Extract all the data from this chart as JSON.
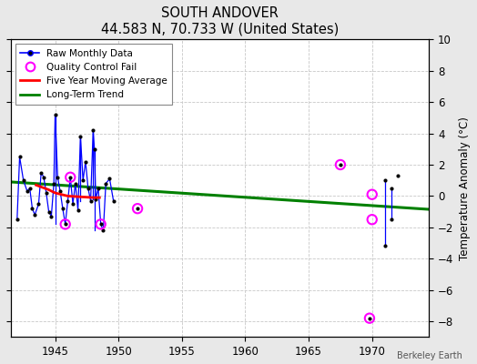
{
  "title": "SOUTH ANDOVER",
  "subtitle": "44.583 N, 70.733 W (United States)",
  "ylabel": "Temperature Anomaly (°C)",
  "credit": "Berkeley Earth",
  "xlim": [
    1941.5,
    1974.5
  ],
  "ylim": [
    -9,
    10
  ],
  "yticks": [
    -8,
    -6,
    -4,
    -2,
    0,
    2,
    4,
    6,
    8,
    10
  ],
  "xticks": [
    1945,
    1950,
    1955,
    1960,
    1965,
    1970
  ],
  "fig_bg": "#e8e8e8",
  "plot_bg": "#ffffff",
  "grid_color": "#c8c8c8",
  "raw_data": [
    [
      1942.0,
      -1.5
    ],
    [
      1942.2,
      2.5
    ],
    [
      1942.5,
      1.0
    ],
    [
      1942.8,
      0.3
    ],
    [
      1943.0,
      0.5
    ],
    [
      1943.2,
      -0.8
    ],
    [
      1943.4,
      -1.2
    ],
    [
      1943.7,
      -0.5
    ],
    [
      1943.9,
      1.5
    ],
    [
      1944.1,
      1.2
    ],
    [
      1944.3,
      0.2
    ],
    [
      1944.5,
      -1.0
    ],
    [
      1944.7,
      -1.3
    ],
    [
      1944.9,
      0.8
    ],
    [
      1945.0,
      5.2
    ],
    [
      1945.2,
      1.2
    ],
    [
      1945.4,
      0.3
    ],
    [
      1945.6,
      -0.8
    ],
    [
      1945.8,
      -1.8
    ],
    [
      1946.0,
      -0.3
    ],
    [
      1946.2,
      1.2
    ],
    [
      1946.4,
      -0.5
    ],
    [
      1946.6,
      0.8
    ],
    [
      1946.8,
      -0.9
    ],
    [
      1947.0,
      3.8
    ],
    [
      1947.2,
      1.0
    ],
    [
      1947.4,
      2.2
    ],
    [
      1947.6,
      0.5
    ],
    [
      1947.8,
      -0.3
    ],
    [
      1948.0,
      4.2
    ],
    [
      1948.1,
      3.0
    ],
    [
      1948.2,
      -0.2
    ],
    [
      1948.4,
      0.5
    ],
    [
      1948.6,
      -1.8
    ],
    [
      1948.8,
      -2.2
    ],
    [
      1949.0,
      0.8
    ],
    [
      1949.3,
      1.1
    ],
    [
      1949.6,
      -0.3
    ]
  ],
  "qc_fail_data": [
    [
      1945.8,
      -1.8
    ],
    [
      1946.2,
      1.2
    ],
    [
      1948.6,
      -1.8
    ],
    [
      1951.5,
      -0.8
    ],
    [
      1967.5,
      2.0
    ],
    [
      1970.0,
      0.1
    ],
    [
      1970.0,
      -1.5
    ],
    [
      1969.8,
      -7.8
    ]
  ],
  "raw_line_segments": [
    [
      [
        1945.0,
        1945.0
      ],
      [
        5.2,
        -1.8
      ]
    ],
    [
      [
        1947.0,
        1947.0
      ],
      [
        3.8,
        -0.3
      ]
    ],
    [
      [
        1948.0,
        1948.0
      ],
      [
        4.2,
        -0.2
      ]
    ],
    [
      [
        1948.1,
        1948.1
      ],
      [
        3.0,
        -2.2
      ]
    ],
    [
      [
        1971.0,
        1971.0
      ],
      [
        1.0,
        -3.2
      ]
    ],
    [
      [
        1971.5,
        1971.5
      ],
      [
        0.5,
        -1.5
      ]
    ]
  ],
  "isolated_points": [
    [
      1951.5,
      -0.8
    ],
    [
      1967.5,
      2.0
    ],
    [
      1971.0,
      1.0
    ],
    [
      1971.0,
      -3.2
    ],
    [
      1972.0,
      1.3
    ],
    [
      1971.5,
      0.5
    ],
    [
      1971.5,
      -1.5
    ],
    [
      1969.8,
      -7.8
    ]
  ],
  "moving_avg": [
    [
      1943.5,
      0.7
    ],
    [
      1944.5,
      0.4
    ],
    [
      1945.0,
      0.2
    ],
    [
      1945.5,
      0.1
    ],
    [
      1946.0,
      0.0
    ],
    [
      1947.0,
      -0.05
    ],
    [
      1948.0,
      -0.1
    ],
    [
      1948.5,
      -0.1
    ]
  ],
  "trend_line": [
    [
      1941.5,
      0.9
    ],
    [
      1974.5,
      -0.85
    ]
  ]
}
